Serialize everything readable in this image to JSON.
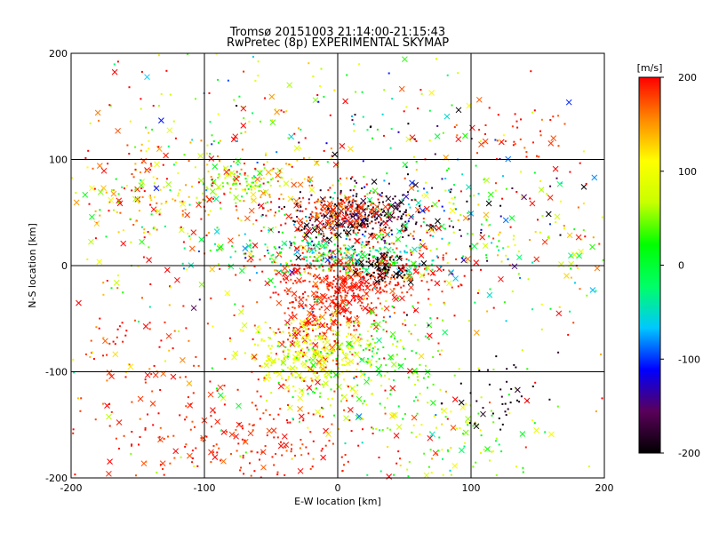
{
  "chart_data": {
    "type": "scatter",
    "title": "Tromsø 20151003 21:14:00-21:15:43",
    "subtitle": "RwPretec (8p) EXPERIMENTAL SKYMAP",
    "xlabel": "E-W location [km]",
    "ylabel": "N-S location [km]",
    "xlim": [
      -200,
      200
    ],
    "ylim": [
      -200,
      200
    ],
    "xticks": [
      "-200",
      "-100",
      "0",
      "100",
      "200"
    ],
    "yticks": [
      "-200",
      "-100",
      "0",
      "100",
      "200"
    ],
    "grid": true,
    "colorbar": {
      "label": "[m/s]",
      "range": [
        -200,
        200
      ],
      "ticks": [
        "200",
        "100",
        "0",
        "-100",
        "-200"
      ],
      "colormap": [
        "#000000",
        "#5a005a",
        "#0000ff",
        "#00c8ff",
        "#00ff66",
        "#00ff00",
        "#c8ff00",
        "#ffff00",
        "#ff8800",
        "#ff0000"
      ]
    },
    "markers": [
      "dot",
      "x"
    ],
    "clusters": [
      {
        "x": 10,
        "y": -10,
        "sx": 35,
        "sy": 18,
        "n": 500,
        "v": 190,
        "vs": 12
      },
      {
        "x": 15,
        "y": 45,
        "sx": 28,
        "sy": 14,
        "n": 260,
        "v": -185,
        "vs": 20
      },
      {
        "x": 5,
        "y": 50,
        "sx": 18,
        "sy": 10,
        "n": 180,
        "v": 185,
        "vs": 15
      },
      {
        "x": 0,
        "y": 10,
        "sx": 45,
        "sy": 10,
        "n": 250,
        "v": 0,
        "vs": 55
      },
      {
        "x": 35,
        "y": -2,
        "sx": 10,
        "sy": 6,
        "n": 70,
        "v": -200,
        "vs": 6
      },
      {
        "x": -10,
        "y": -55,
        "sx": 20,
        "sy": 20,
        "n": 200,
        "v": 190,
        "vs": 15
      },
      {
        "x": -20,
        "y": -85,
        "sx": 25,
        "sy": 18,
        "n": 260,
        "v": 90,
        "vs": 15
      },
      {
        "x": 20,
        "y": -90,
        "sx": 30,
        "sy": 25,
        "n": 160,
        "v": 30,
        "vs": 25
      },
      {
        "x": -70,
        "y": 78,
        "sx": 15,
        "sy": 8,
        "n": 80,
        "v": 60,
        "vs": 25
      },
      {
        "x": -60,
        "y": 70,
        "sx": 50,
        "sy": 20,
        "n": 120,
        "v": 170,
        "vs": 30
      },
      {
        "x": -150,
        "y": 70,
        "sx": 30,
        "sy": 25,
        "n": 150,
        "v": 120,
        "vs": 80
      },
      {
        "x": -150,
        "y": -80,
        "sx": 30,
        "sy": 25,
        "n": 60,
        "v": 180,
        "vs": 25
      },
      {
        "x": -80,
        "y": -160,
        "sx": 60,
        "sy": 30,
        "n": 260,
        "v": 190,
        "vs": 12
      },
      {
        "x": 80,
        "y": -160,
        "sx": 40,
        "sy": 25,
        "n": 120,
        "v": 60,
        "vs": 50
      },
      {
        "x": 120,
        "y": -120,
        "sx": 20,
        "sy": 20,
        "n": 40,
        "v": -190,
        "vs": 10
      },
      {
        "x": 140,
        "y": 30,
        "sx": 40,
        "sy": 30,
        "n": 110,
        "v": 60,
        "vs": 110
      },
      {
        "x": 130,
        "y": 120,
        "sx": 20,
        "sy": 15,
        "n": 40,
        "v": 190,
        "vs": 20
      },
      {
        "x": 60,
        "y": 50,
        "sx": 50,
        "sy": 35,
        "n": 150,
        "v": -50,
        "vs": 120
      },
      {
        "x": -40,
        "y": 130,
        "sx": 80,
        "sy": 40,
        "n": 150,
        "v": 50,
        "vs": 120
      },
      {
        "x": 0,
        "y": 0,
        "sx": 130,
        "sy": 110,
        "n": 450,
        "v": 120,
        "vs": 110
      }
    ]
  }
}
